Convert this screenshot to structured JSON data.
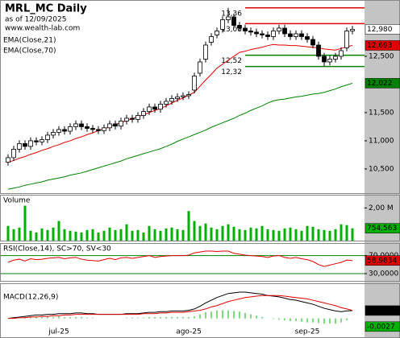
{
  "chart_data": {
    "type": "candlestick",
    "title": "MRL_MC Daily",
    "subtitle": "as of 12/09/2025",
    "source": "www.wealth-lab.com",
    "categories": [
      null,
      null,
      null,
      null,
      null,
      null,
      null,
      null,
      null,
      "jul-25",
      null,
      null,
      null,
      null,
      null,
      null,
      null,
      null,
      null,
      null,
      null,
      null,
      null,
      null,
      null,
      null,
      null,
      null,
      null,
      null,
      null,
      null,
      "ago-25",
      null,
      null,
      null,
      null,
      null,
      null,
      null,
      null,
      null,
      null,
      null,
      null,
      null,
      null,
      null,
      null,
      null,
      null,
      null,
      null,
      "sep-25",
      null,
      null,
      null,
      null,
      null,
      null,
      null,
      null
    ],
    "candles": {
      "open": [
        10.62,
        10.7,
        10.85,
        10.95,
        10.9,
        11.0,
        10.98,
        11.02,
        11.1,
        11.15,
        11.2,
        11.17,
        11.25,
        11.3,
        11.25,
        11.22,
        11.2,
        11.18,
        11.23,
        11.3,
        11.26,
        11.35,
        11.4,
        11.38,
        11.45,
        11.52,
        11.6,
        11.56,
        11.65,
        11.7,
        11.75,
        11.78,
        11.8,
        11.9,
        12.2,
        12.45,
        12.75,
        12.88,
        12.98,
        13.15,
        13.2,
        13.05,
        13.0,
        12.95,
        12.93,
        12.9,
        12.88,
        12.85,
        12.95,
        13.0,
        12.9,
        12.85,
        12.9,
        12.85,
        12.8,
        12.7,
        12.5,
        12.4,
        12.45,
        12.5,
        12.65,
        12.95
      ],
      "high": [
        10.76,
        10.91,
        11.01,
        11.01,
        11.06,
        11.06,
        11.08,
        11.16,
        11.21,
        11.26,
        11.26,
        11.31,
        11.36,
        11.36,
        11.31,
        11.28,
        11.26,
        11.29,
        11.36,
        11.36,
        11.41,
        11.46,
        11.46,
        11.51,
        11.58,
        11.66,
        11.66,
        11.71,
        11.76,
        11.81,
        11.84,
        11.86,
        11.88,
        12.21,
        12.46,
        12.76,
        12.91,
        13.01,
        13.21,
        13.36,
        13.26,
        13.11,
        13.06,
        13.01,
        12.99,
        12.96,
        12.94,
        13.01,
        13.06,
        13.06,
        12.96,
        12.96,
        12.96,
        12.91,
        12.86,
        12.76,
        12.56,
        12.51,
        12.56,
        12.66,
        13.01,
        13.04
      ],
      "low": [
        10.56,
        10.64,
        10.79,
        10.84,
        10.84,
        10.92,
        10.92,
        10.96,
        11.04,
        11.09,
        11.11,
        11.11,
        11.19,
        11.19,
        11.16,
        11.14,
        11.12,
        11.12,
        11.17,
        11.2,
        11.2,
        11.29,
        11.32,
        11.32,
        11.39,
        11.46,
        11.5,
        11.5,
        11.59,
        11.64,
        11.69,
        11.72,
        11.74,
        11.84,
        12.14,
        12.39,
        12.69,
        12.82,
        12.92,
        13.09,
        12.99,
        12.94,
        12.89,
        12.87,
        12.84,
        12.82,
        12.79,
        12.79,
        12.89,
        12.84,
        12.79,
        12.79,
        12.79,
        12.74,
        12.64,
        12.44,
        12.32,
        12.34,
        12.39,
        12.44,
        12.59,
        12.89
      ],
      "close": [
        10.7,
        10.85,
        10.95,
        10.9,
        11.0,
        10.98,
        11.02,
        11.1,
        11.15,
        11.2,
        11.17,
        11.25,
        11.3,
        11.25,
        11.22,
        11.2,
        11.18,
        11.23,
        11.3,
        11.26,
        11.35,
        11.4,
        11.38,
        11.45,
        11.52,
        11.6,
        11.56,
        11.65,
        11.7,
        11.75,
        11.78,
        11.8,
        11.82,
        12.15,
        12.4,
        12.7,
        12.85,
        12.95,
        13.15,
        13.2,
        13.05,
        13.0,
        12.95,
        12.93,
        12.9,
        12.88,
        12.85,
        12.95,
        13.0,
        12.9,
        12.85,
        12.9,
        12.85,
        12.8,
        12.7,
        12.5,
        12.4,
        12.45,
        12.5,
        12.6,
        12.95,
        12.98
      ],
      "value_labels": {
        "61": "12,980"
      },
      "up_color": "#ffffff",
      "down_color": "#000000"
    },
    "series": [
      {
        "name": "EMA(Close,21)",
        "color": "#e00000",
        "values": [
          10.62,
          10.65,
          10.69,
          10.72,
          10.76,
          10.79,
          10.83,
          10.86,
          10.9,
          10.93,
          10.97,
          11.0,
          11.04,
          11.07,
          11.11,
          11.14,
          11.18,
          11.21,
          11.25,
          11.29,
          11.32,
          11.36,
          11.39,
          11.43,
          11.46,
          11.5,
          11.54,
          11.57,
          11.62,
          11.67,
          11.72,
          11.76,
          11.81,
          11.86,
          11.97,
          12.08,
          12.18,
          12.29,
          12.36,
          12.43,
          12.5,
          12.57,
          12.59,
          12.62,
          12.64,
          12.66,
          12.69,
          12.71,
          12.7,
          12.7,
          12.69,
          12.69,
          12.68,
          12.67,
          12.66,
          12.65,
          12.63,
          12.62,
          12.61,
          12.64,
          12.67,
          12.693
        ],
        "value_labels": {
          "61": "12,693"
        }
      },
      {
        "name": "EMA(Close,70)",
        "color": "#008000",
        "values": [
          10.14,
          10.16,
          10.18,
          10.21,
          10.23,
          10.25,
          10.27,
          10.3,
          10.32,
          10.34,
          10.36,
          10.39,
          10.41,
          10.43,
          10.46,
          10.49,
          10.52,
          10.55,
          10.58,
          10.61,
          10.64,
          10.68,
          10.71,
          10.74,
          10.77,
          10.8,
          10.83,
          10.86,
          10.9,
          10.94,
          10.99,
          11.03,
          11.07,
          11.11,
          11.15,
          11.19,
          11.24,
          11.28,
          11.32,
          11.36,
          11.4,
          11.45,
          11.49,
          11.54,
          11.58,
          11.62,
          11.67,
          11.71,
          11.73,
          11.74,
          11.76,
          11.78,
          11.79,
          11.81,
          11.83,
          11.84,
          11.86,
          11.89,
          11.92,
          11.96,
          11.99,
          12.022
        ],
        "value_labels": {
          "61": "12,022"
        }
      }
    ],
    "levels": [
      {
        "value": 13.36,
        "label": "13,36",
        "color": "#e00000"
      },
      {
        "value": 13.08,
        "label": "13,08",
        "color": "#e00000"
      },
      {
        "value": 12.52,
        "label": "12,52",
        "color": "#008000"
      },
      {
        "value": 12.32,
        "label": "12,32",
        "color": "#008000"
      }
    ],
    "ylim": [
      10.07,
      13.5
    ],
    "yticks": [
      {
        "value": 10.5,
        "label": "10,500"
      },
      {
        "value": 11,
        "label": "11,000"
      },
      {
        "value": 11.5,
        "label": "11,500"
      },
      {
        "value": 12.5,
        "label": "12,500"
      }
    ],
    "grid": false,
    "volume": {
      "title": "Volume",
      "color": "#00b000",
      "values": [
        900000,
        700000,
        800000,
        2140000,
        600000,
        500000,
        750000,
        650000,
        800000,
        1200000,
        700000,
        600000,
        550000,
        500000,
        650000,
        700000,
        500000,
        600000,
        800000,
        650000,
        700000,
        1000000,
        600000,
        650000,
        500000,
        900000,
        700000,
        600000,
        750000,
        800000,
        700000,
        650000,
        1810000,
        1200000,
        900000,
        1050000,
        800000,
        700000,
        900000,
        1000000,
        850000,
        700000,
        650000,
        800000,
        750000,
        900000,
        700000,
        650000,
        600000,
        750000,
        800000,
        700000,
        600000,
        900000,
        850000,
        700000,
        650000,
        600000,
        700000,
        1000000,
        950000,
        754563
      ],
      "value_labels": {
        "61": "754,563"
      },
      "ylim": [
        0,
        2760000
      ],
      "yticks": [
        {
          "value": 2000000,
          "label": "2,00 M"
        }
      ]
    },
    "rsi": {
      "title": "RSI(Close,14), SC>70, SV<30",
      "color": "#e00000",
      "band_color": "#008000",
      "values": [
        55,
        60,
        62,
        58,
        63,
        61,
        62,
        64,
        65,
        66,
        63,
        65,
        66,
        62,
        60,
        59,
        58,
        61,
        64,
        61,
        65,
        66,
        64,
        66,
        68,
        70,
        66,
        68,
        69,
        70,
        70,
        70,
        71,
        76,
        78,
        80,
        80,
        79,
        80,
        80,
        75,
        73,
        71,
        70,
        69,
        68,
        66,
        69,
        70,
        66,
        64,
        66,
        63,
        61,
        57,
        50,
        46,
        49,
        52,
        55,
        60,
        58.9834
      ],
      "value_labels": {
        "61": "58,9834"
      },
      "ylim": [
        14,
        96
      ],
      "yticks": [
        {
          "value": 30,
          "label": "30,0000"
        },
        {
          "value": 70,
          "label": "70,0000"
        }
      ]
    },
    "macd": {
      "title": "MACD(12,26,9)",
      "color": "#000000",
      "values": [
        0.0,
        0.01,
        0.02,
        0.03,
        0.04,
        0.05,
        0.05,
        0.06,
        0.06,
        0.07,
        0.07,
        0.07,
        0.08,
        0.08,
        0.07,
        0.07,
        0.06,
        0.06,
        0.06,
        0.06,
        0.06,
        0.07,
        0.07,
        0.07,
        0.08,
        0.09,
        0.09,
        0.1,
        0.1,
        0.11,
        0.11,
        0.11,
        0.12,
        0.14,
        0.18,
        0.23,
        0.27,
        0.31,
        0.34,
        0.37,
        0.38,
        0.39,
        0.39,
        0.38,
        0.37,
        0.36,
        0.34,
        0.33,
        0.32,
        0.3,
        0.28,
        0.27,
        0.25,
        0.23,
        0.21,
        0.18,
        0.15,
        0.13,
        0.11,
        0.1,
        0.11,
        0.1161
      ],
      "value_labels": {
        "61": "0,1161"
      },
      "signal": {
        "color": "#e00000",
        "values": [
          0.0,
          0.0,
          0.01,
          0.01,
          0.02,
          0.02,
          0.03,
          0.03,
          0.04,
          0.04,
          0.05,
          0.05,
          0.06,
          0.06,
          0.06,
          0.06,
          0.06,
          0.06,
          0.06,
          0.06,
          0.06,
          0.06,
          0.06,
          0.06,
          0.07,
          0.07,
          0.07,
          0.08,
          0.08,
          0.09,
          0.09,
          0.09,
          0.1,
          0.11,
          0.12,
          0.14,
          0.17,
          0.19,
          0.22,
          0.25,
          0.27,
          0.29,
          0.31,
          0.32,
          0.33,
          0.34,
          0.34,
          0.34,
          0.34,
          0.33,
          0.32,
          0.31,
          0.3,
          0.29,
          0.27,
          0.25,
          0.23,
          0.21,
          0.19,
          0.16,
          0.14,
          0.1188
        ]
      },
      "histogram": {
        "color": "#00b000",
        "values": [
          0,
          0.01,
          0.01,
          0.02,
          0.02,
          0.03,
          0.02,
          0.03,
          0.02,
          0.03,
          0.02,
          0.02,
          0.02,
          0.02,
          0.01,
          0.01,
          0,
          0,
          0,
          0,
          0,
          0.01,
          0.01,
          0.01,
          0.01,
          0.02,
          0.02,
          0.02,
          0.02,
          0.02,
          0.02,
          0.02,
          0.02,
          0.03,
          0.06,
          0.09,
          0.1,
          0.12,
          0.12,
          0.12,
          0.11,
          0.1,
          0.08,
          0.06,
          0.04,
          0.02,
          0,
          -0.01,
          -0.02,
          -0.03,
          -0.04,
          -0.04,
          -0.05,
          -0.06,
          -0.06,
          -0.07,
          -0.08,
          -0.08,
          -0.08,
          -0.06,
          -0.03,
          -0.0027
        ],
        "value_labels": {
          "61": "-0,0027"
        }
      },
      "ylim": [
        -0.28,
        0.51
      ]
    }
  }
}
